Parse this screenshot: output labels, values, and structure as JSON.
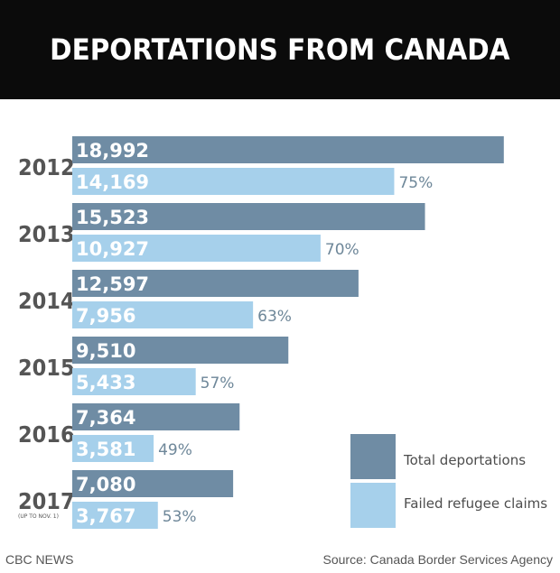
{
  "header": {
    "title": "DEPORTATIONS FROM CANADA"
  },
  "colors": {
    "total": "#6f8ca4",
    "failed": "#a6d0eb",
    "header_bg": "#0b0b0b",
    "pct": "#6e8799"
  },
  "legend": {
    "total_label": "Total deportations",
    "failed_label": "Failed refugee claims"
  },
  "footer": {
    "source_left": "CBC NEWS",
    "source_right": "Source: Canada Border Services Agency"
  },
  "chart_data": {
    "type": "bar",
    "orientation": "horizontal",
    "title": "DEPORTATIONS FROM CANADA",
    "categories": [
      "2012",
      "2013",
      "2014",
      "2015",
      "2016",
      "2017"
    ],
    "category_notes": [
      "",
      "",
      "",
      "",
      "",
      "(UP TO NOV. 1)"
    ],
    "series": [
      {
        "name": "Total deportations",
        "values": [
          18992,
          15523,
          12597,
          9510,
          7364,
          7080
        ],
        "labels": [
          "18,992",
          "15,523",
          "12,597",
          "9,510",
          "7,364",
          "7,080"
        ]
      },
      {
        "name": "Failed refugee claims",
        "values": [
          14169,
          10927,
          7956,
          5433,
          3581,
          3767
        ],
        "labels": [
          "14,169",
          "10,927",
          "7,956",
          "5,433",
          "3,581",
          "3,767"
        ]
      }
    ],
    "percent_labels": [
      "75%",
      "70%",
      "63%",
      "57%",
      "49%",
      "53%"
    ],
    "xlim": [
      0,
      19000
    ],
    "legend_position": "bottom-right"
  }
}
